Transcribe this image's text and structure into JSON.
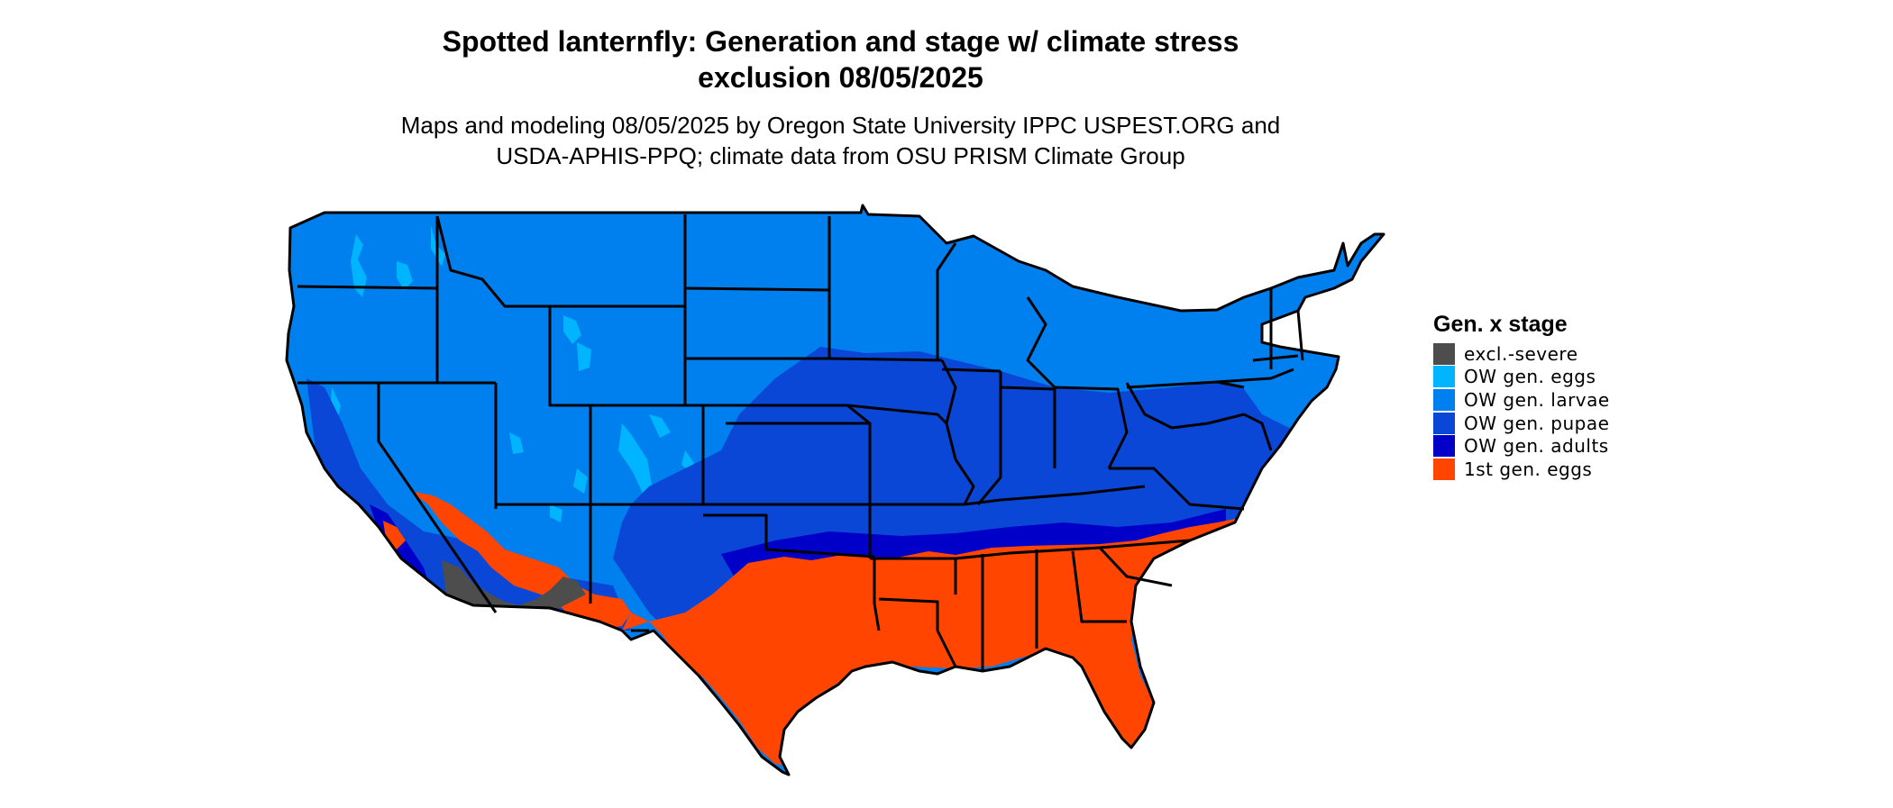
{
  "header": {
    "title_line1": "Spotted lanternfly: Generation and stage w/ climate stress",
    "title_line2": "exclusion 08/05/2025",
    "subtitle_line1": "Maps and modeling 08/05/2025 by Oregon State University IPPC USPEST.ORG and",
    "subtitle_line2": "USDA-APHIS-PPQ; climate data from OSU PRISM Climate Group"
  },
  "legend": {
    "title": "Gen. x stage",
    "items": [
      {
        "label": "excl.-severe",
        "color": "#4d4d4d"
      },
      {
        "label": "OW gen. eggs",
        "color": "#00b4ff"
      },
      {
        "label": "OW gen. larvae",
        "color": "#0080ee"
      },
      {
        "label": "OW gen. pupae",
        "color": "#0a47d6"
      },
      {
        "label": "OW gen. adults",
        "color": "#0000c8"
      },
      {
        "label": "1st gen. eggs",
        "color": "#ff4500"
      }
    ]
  },
  "map": {
    "region": "contiguous-united-states",
    "state_border_color": "#000000",
    "colors": {
      "excl_severe": "#4d4d4d",
      "ow_eggs": "#00b4ff",
      "ow_larvae": "#0080ee",
      "ow_pupae": "#0a47d6",
      "ow_adults": "#0000c8",
      "first_gen_eggs": "#ff4500"
    }
  }
}
